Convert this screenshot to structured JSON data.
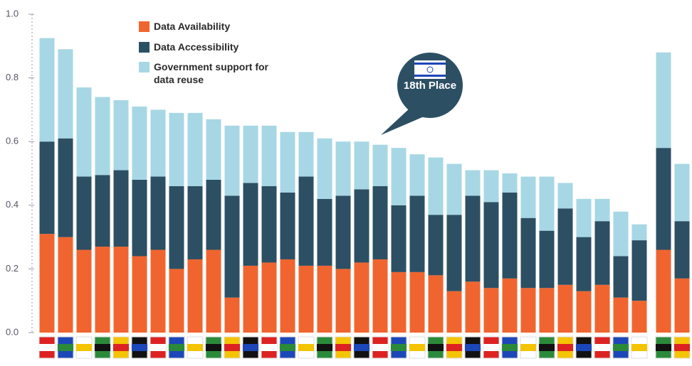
{
  "chart_data": {
    "type": "stacked_bar",
    "categories": [
      null,
      null,
      null,
      null,
      null,
      null,
      null,
      null,
      null,
      null,
      null,
      null,
      null,
      null,
      null,
      null,
      null,
      null,
      null,
      null,
      null,
      null,
      null,
      null,
      null,
      null,
      null,
      null,
      null,
      null,
      null,
      null,
      null,
      null,
      null
    ],
    "series": [
      {
        "name": "Data Availability",
        "color": "#f0652f",
        "values": [
          0.31,
          0.3,
          0.26,
          0.27,
          0.27,
          0.24,
          0.26,
          0.2,
          0.23,
          0.26,
          0.11,
          0.21,
          0.22,
          0.23,
          0.21,
          0.21,
          0.2,
          0.22,
          0.23,
          0.19,
          0.19,
          0.18,
          0.13,
          0.16,
          0.14,
          0.17,
          0.14,
          0.14,
          0.15,
          0.13,
          0.15,
          0.11,
          0.1,
          0.26,
          0.17
        ]
      },
      {
        "name": "Data Accessibility",
        "color": "#2c4f63",
        "values": [
          0.29,
          0.31,
          0.23,
          0.225,
          0.24,
          0.24,
          0.23,
          0.26,
          0.23,
          0.22,
          0.32,
          0.26,
          0.24,
          0.21,
          0.28,
          0.21,
          0.23,
          0.23,
          0.23,
          0.21,
          0.24,
          0.19,
          0.24,
          0.27,
          0.27,
          0.27,
          0.22,
          0.18,
          0.24,
          0.17,
          0.2,
          0.13,
          0.19,
          0.32,
          0.18
        ]
      },
      {
        "name": "Government support for data reuse",
        "color": "#a7d7e4",
        "values": [
          0.325,
          0.28,
          0.28,
          0.245,
          0.22,
          0.23,
          0.21,
          0.23,
          0.23,
          0.19,
          0.22,
          0.18,
          0.19,
          0.19,
          0.14,
          0.19,
          0.17,
          0.15,
          0.13,
          0.18,
          0.13,
          0.18,
          0.16,
          0.08,
          0.1,
          0.06,
          0.13,
          0.17,
          0.08,
          0.12,
          0.07,
          0.14,
          0.05,
          0.3,
          0.18
        ]
      }
    ],
    "ylim": [
      0,
      1
    ],
    "yticks": [
      {
        "value": 0,
        "label": "0.0"
      },
      0.2,
      0.4,
      0.6,
      0.8,
      {
        "value": 1,
        "label": "1.0"
      }
    ],
    "annotation": "18th Place"
  }
}
